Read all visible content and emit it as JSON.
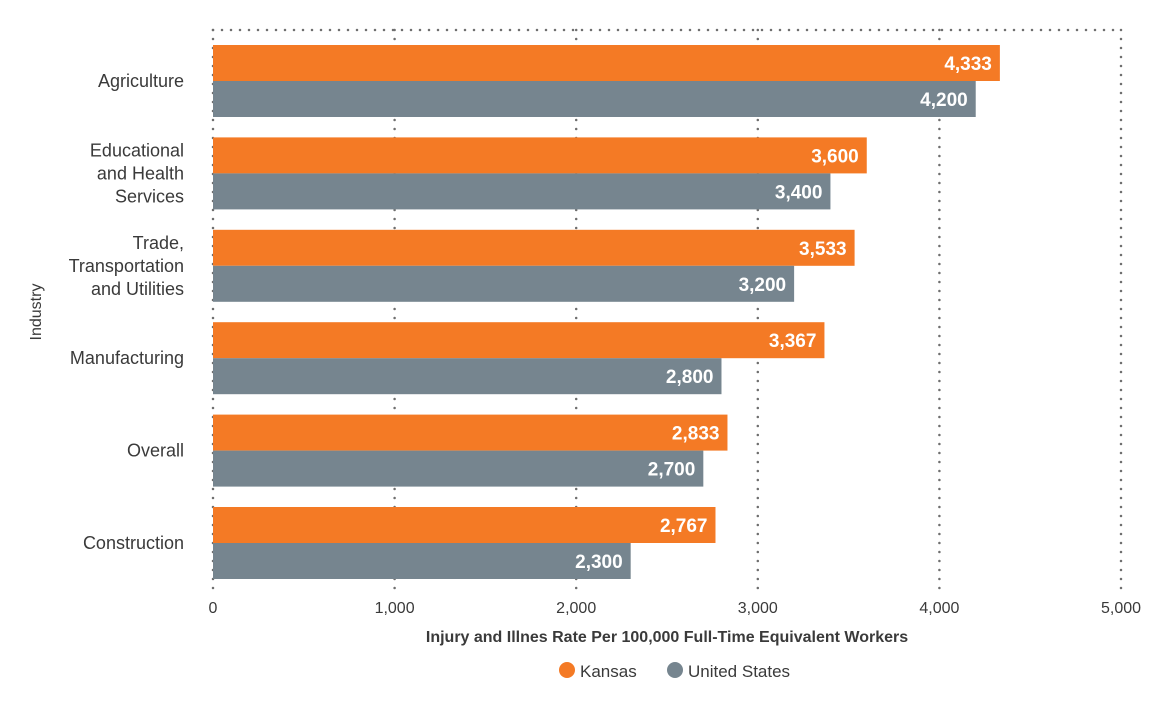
{
  "chart_data": {
    "type": "bar",
    "orientation": "horizontal",
    "categories": [
      "Agriculture",
      "Educational and Health Services",
      "Trade, Transportation and Utilities",
      "Manufacturing",
      "Overall",
      "Construction"
    ],
    "category_lines": [
      [
        "Agriculture"
      ],
      [
        "Educational",
        "and Health",
        "Services"
      ],
      [
        "Trade,",
        "Transportation",
        "and Utilities"
      ],
      [
        "Manufacturing"
      ],
      [
        "Overall"
      ],
      [
        "Construction"
      ]
    ],
    "series": [
      {
        "name": "Kansas",
        "color": "#f47a25",
        "values": [
          4333,
          3600,
          3533,
          3367,
          2833,
          2767
        ],
        "labels": [
          "4,333",
          "3,600",
          "3,533",
          "3,367",
          "2,833",
          "2,767"
        ]
      },
      {
        "name": "United States",
        "color": "#76858f",
        "values": [
          4200,
          3400,
          3200,
          2800,
          2700,
          2300
        ],
        "labels": [
          "4,200",
          "3,400",
          "3,200",
          "2,800",
          "2,700",
          "2,300"
        ]
      }
    ],
    "xlabel": "Injury and Illnes Rate Per 100,000 Full-Time Equivalent Workers",
    "ylabel": "Industry",
    "xlim": [
      0,
      5000
    ],
    "xticks": [
      0,
      1000,
      2000,
      3000,
      4000,
      5000
    ],
    "xtick_labels": [
      "0",
      "1,000",
      "2,000",
      "3,000",
      "4,000",
      "5,000"
    ],
    "grid": "vertical dotted",
    "legend_position": "bottom"
  }
}
